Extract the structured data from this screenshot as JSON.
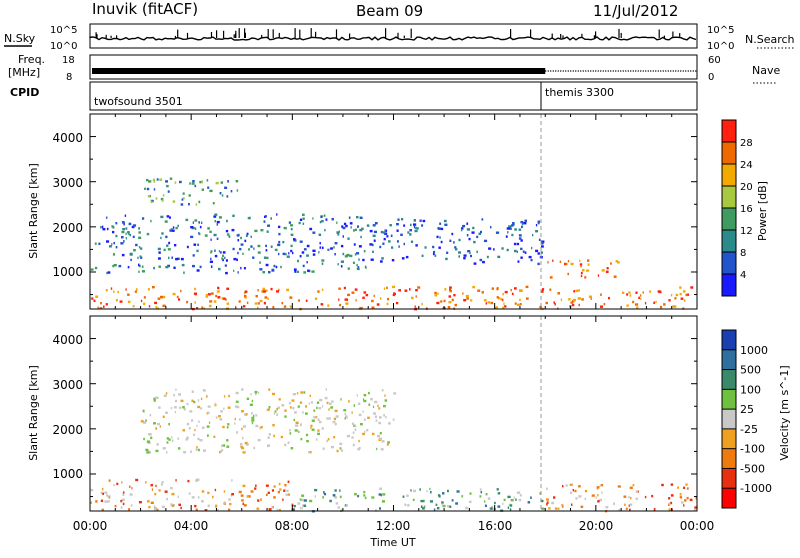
{
  "header": {
    "station": "Inuvik (fitACF)",
    "beam": "Beam 09",
    "date": "11/Jul/2012"
  },
  "top_panels": {
    "nsky_label": "N.Sky",
    "nsky_ticks": [
      "10^5",
      "10^0"
    ],
    "nsearch_label": "N.Search",
    "nsearch_ticks": [
      "10^5",
      "10^0"
    ],
    "freq_label": "Freq.",
    "freq_unit": "[MHz]",
    "freq_ticks": [
      "18",
      "8"
    ],
    "nave_label": "Nave",
    "nave_ticks": [
      "60",
      "0"
    ],
    "cpid_label": "CPID",
    "cpid_segments": [
      {
        "name": "twofsound 3501",
        "start_hour": 0,
        "end_hour": 18.0
      },
      {
        "name": "themis 3300",
        "start_hour": 18.0,
        "end_hour": 24
      }
    ]
  },
  "chart_data": [
    {
      "type": "heatmap",
      "panel": "power",
      "xlabel": "Time UT",
      "ylabel": "Slant Range [km]",
      "x_range_hours": [
        0,
        24
      ],
      "x_tick_labels": [
        "00:00",
        "04:00",
        "08:00",
        "12:00",
        "16:00",
        "20:00",
        "00:00"
      ],
      "ylim_km": [
        180,
        4500
      ],
      "y_tick_labels": [
        "1000",
        "2000",
        "3000",
        "4000"
      ],
      "colorbar": {
        "label": "Power [dB]",
        "ticks": [
          "4",
          "8",
          "12",
          "16",
          "20",
          "24",
          "28"
        ],
        "colors": [
          "#1a1aff",
          "#2255cc",
          "#2d8a8a",
          "#3f9b5f",
          "#a8c840",
          "#f2a900",
          "#ee6a00",
          "#ff2010"
        ]
      },
      "features": [
        {
          "description_hours": [
            0,
            24
          ],
          "range_km": [
            200,
            700
          ],
          "dominant": "red-orange",
          "value_db": 26
        },
        {
          "description_hours": [
            0,
            11
          ],
          "range_km": [
            1000,
            2300
          ],
          "dominant": "blue-green",
          "value_db": 10
        },
        {
          "description_hours": [
            11,
            18
          ],
          "range_km": [
            1200,
            2200
          ],
          "dominant": "blue",
          "value_db": 6
        },
        {
          "description_hours": [
            18,
            21
          ],
          "range_km": [
            900,
            1300
          ],
          "dominant": "orange",
          "value_db": 20
        },
        {
          "description_hours": [
            2,
            6
          ],
          "range_km": [
            2500,
            3100
          ],
          "dominant": "green-yellow",
          "value_db": 14
        }
      ]
    },
    {
      "type": "heatmap",
      "panel": "velocity",
      "xlabel": "Time UT",
      "ylabel": "Slant Range [km]",
      "x_range_hours": [
        0,
        24
      ],
      "x_tick_labels": [
        "00:00",
        "04:00",
        "08:00",
        "12:00",
        "16:00",
        "20:00",
        "00:00"
      ],
      "ylim_km": [
        180,
        4500
      ],
      "y_tick_labels": [
        "1000",
        "2000",
        "3000",
        "4000"
      ],
      "colorbar": {
        "label": "Velocity [m s^-1]",
        "ticks": [
          "1000",
          "500",
          "100",
          "25",
          "-25",
          "-100",
          "-500",
          "-1000"
        ],
        "colors": [
          "#1a3fb0",
          "#2f6fa0",
          "#3a8a6a",
          "#70c040",
          "#c8c8c8",
          "#f0a020",
          "#ee7a10",
          "#e83010",
          "#ff0000"
        ]
      },
      "features": [
        {
          "description_hours": [
            0,
            8
          ],
          "range_km": [
            200,
            900
          ],
          "dominant": "orange",
          "value_ms": -300
        },
        {
          "description_hours": [
            2,
            12
          ],
          "range_km": [
            1500,
            2900
          ],
          "dominant": "grey",
          "value_ms": 0
        },
        {
          "description_hours": [
            8,
            18
          ],
          "range_km": [
            200,
            700
          ],
          "dominant": "green",
          "value_ms": 200
        },
        {
          "description_hours": [
            18,
            24
          ],
          "range_km": [
            200,
            800
          ],
          "dominant": "orange",
          "value_ms": -300
        }
      ]
    }
  ]
}
